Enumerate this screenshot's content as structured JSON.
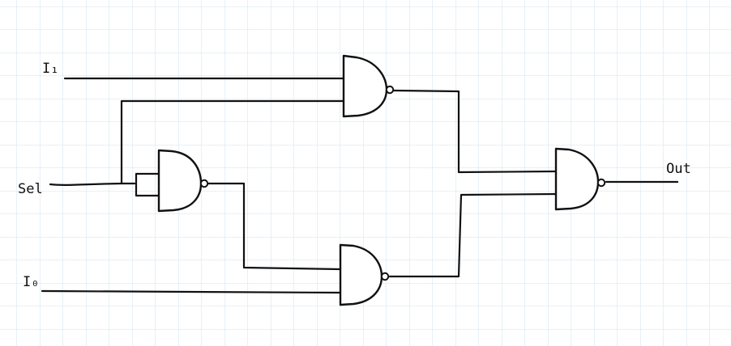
{
  "labels": {
    "i1": "I₁",
    "sel": "Sel",
    "i0": "I₀",
    "out": "Out"
  },
  "colors": {
    "grid": "#cfe3f2",
    "ink": "#111111",
    "paper": "#ffffff"
  }
}
